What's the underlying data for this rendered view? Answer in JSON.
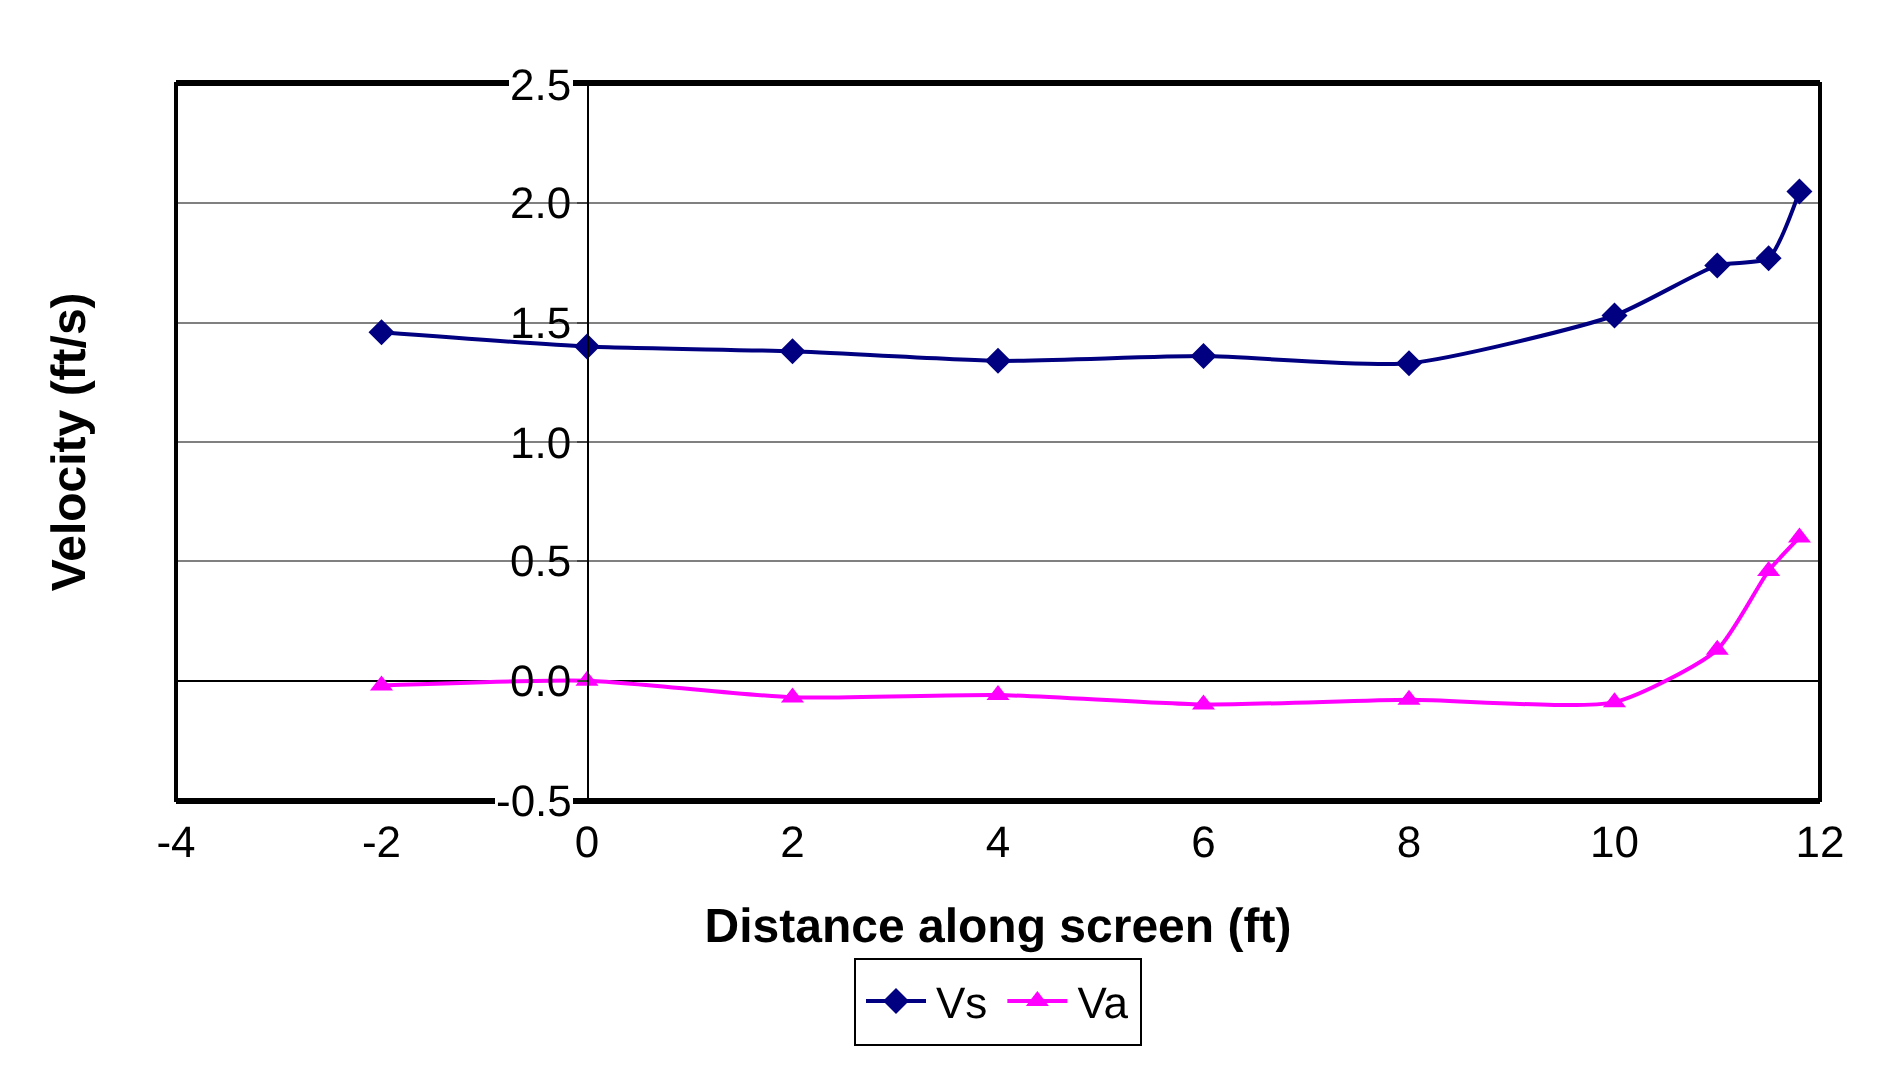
{
  "chart_data": {
    "type": "line",
    "xlabel": "Distance along screen (ft)",
    "ylabel": "Velocity (ft/s)",
    "xlim": [
      -4,
      12
    ],
    "xticks": [
      -4,
      -2,
      0,
      2,
      4,
      6,
      8,
      10,
      12
    ],
    "ylim": [
      -0.5,
      2.5
    ],
    "yticks": [
      {
        "value": -0.5,
        "label": "-0.5"
      },
      {
        "value": 0,
        "label": "0.0"
      },
      {
        "value": 0.5,
        "label": "0.5"
      },
      {
        "value": 1,
        "label": "1.0"
      },
      {
        "value": 1.5,
        "label": "1.5"
      },
      {
        "value": 2,
        "label": "2.0"
      },
      {
        "value": 2.5,
        "label": "2.5"
      }
    ],
    "x": [
      -2,
      0,
      2,
      4,
      6,
      8,
      10,
      11,
      11.5,
      11.8
    ],
    "series": [
      {
        "name": "Vs",
        "color": "#000080",
        "marker": "diamond",
        "values": [
          1.46,
          1.4,
          1.38,
          1.34,
          1.36,
          1.33,
          1.53,
          1.74,
          1.77,
          2.05
        ]
      },
      {
        "name": "Va",
        "color": "#ff00ff",
        "marker": "triangle",
        "values": [
          -0.02,
          0,
          -0.07,
          -0.06,
          -0.1,
          -0.08,
          -0.09,
          0.13,
          0.46,
          0.6
        ]
      }
    ],
    "grid": "y",
    "legend": "bottom",
    "line_style": "solid"
  }
}
